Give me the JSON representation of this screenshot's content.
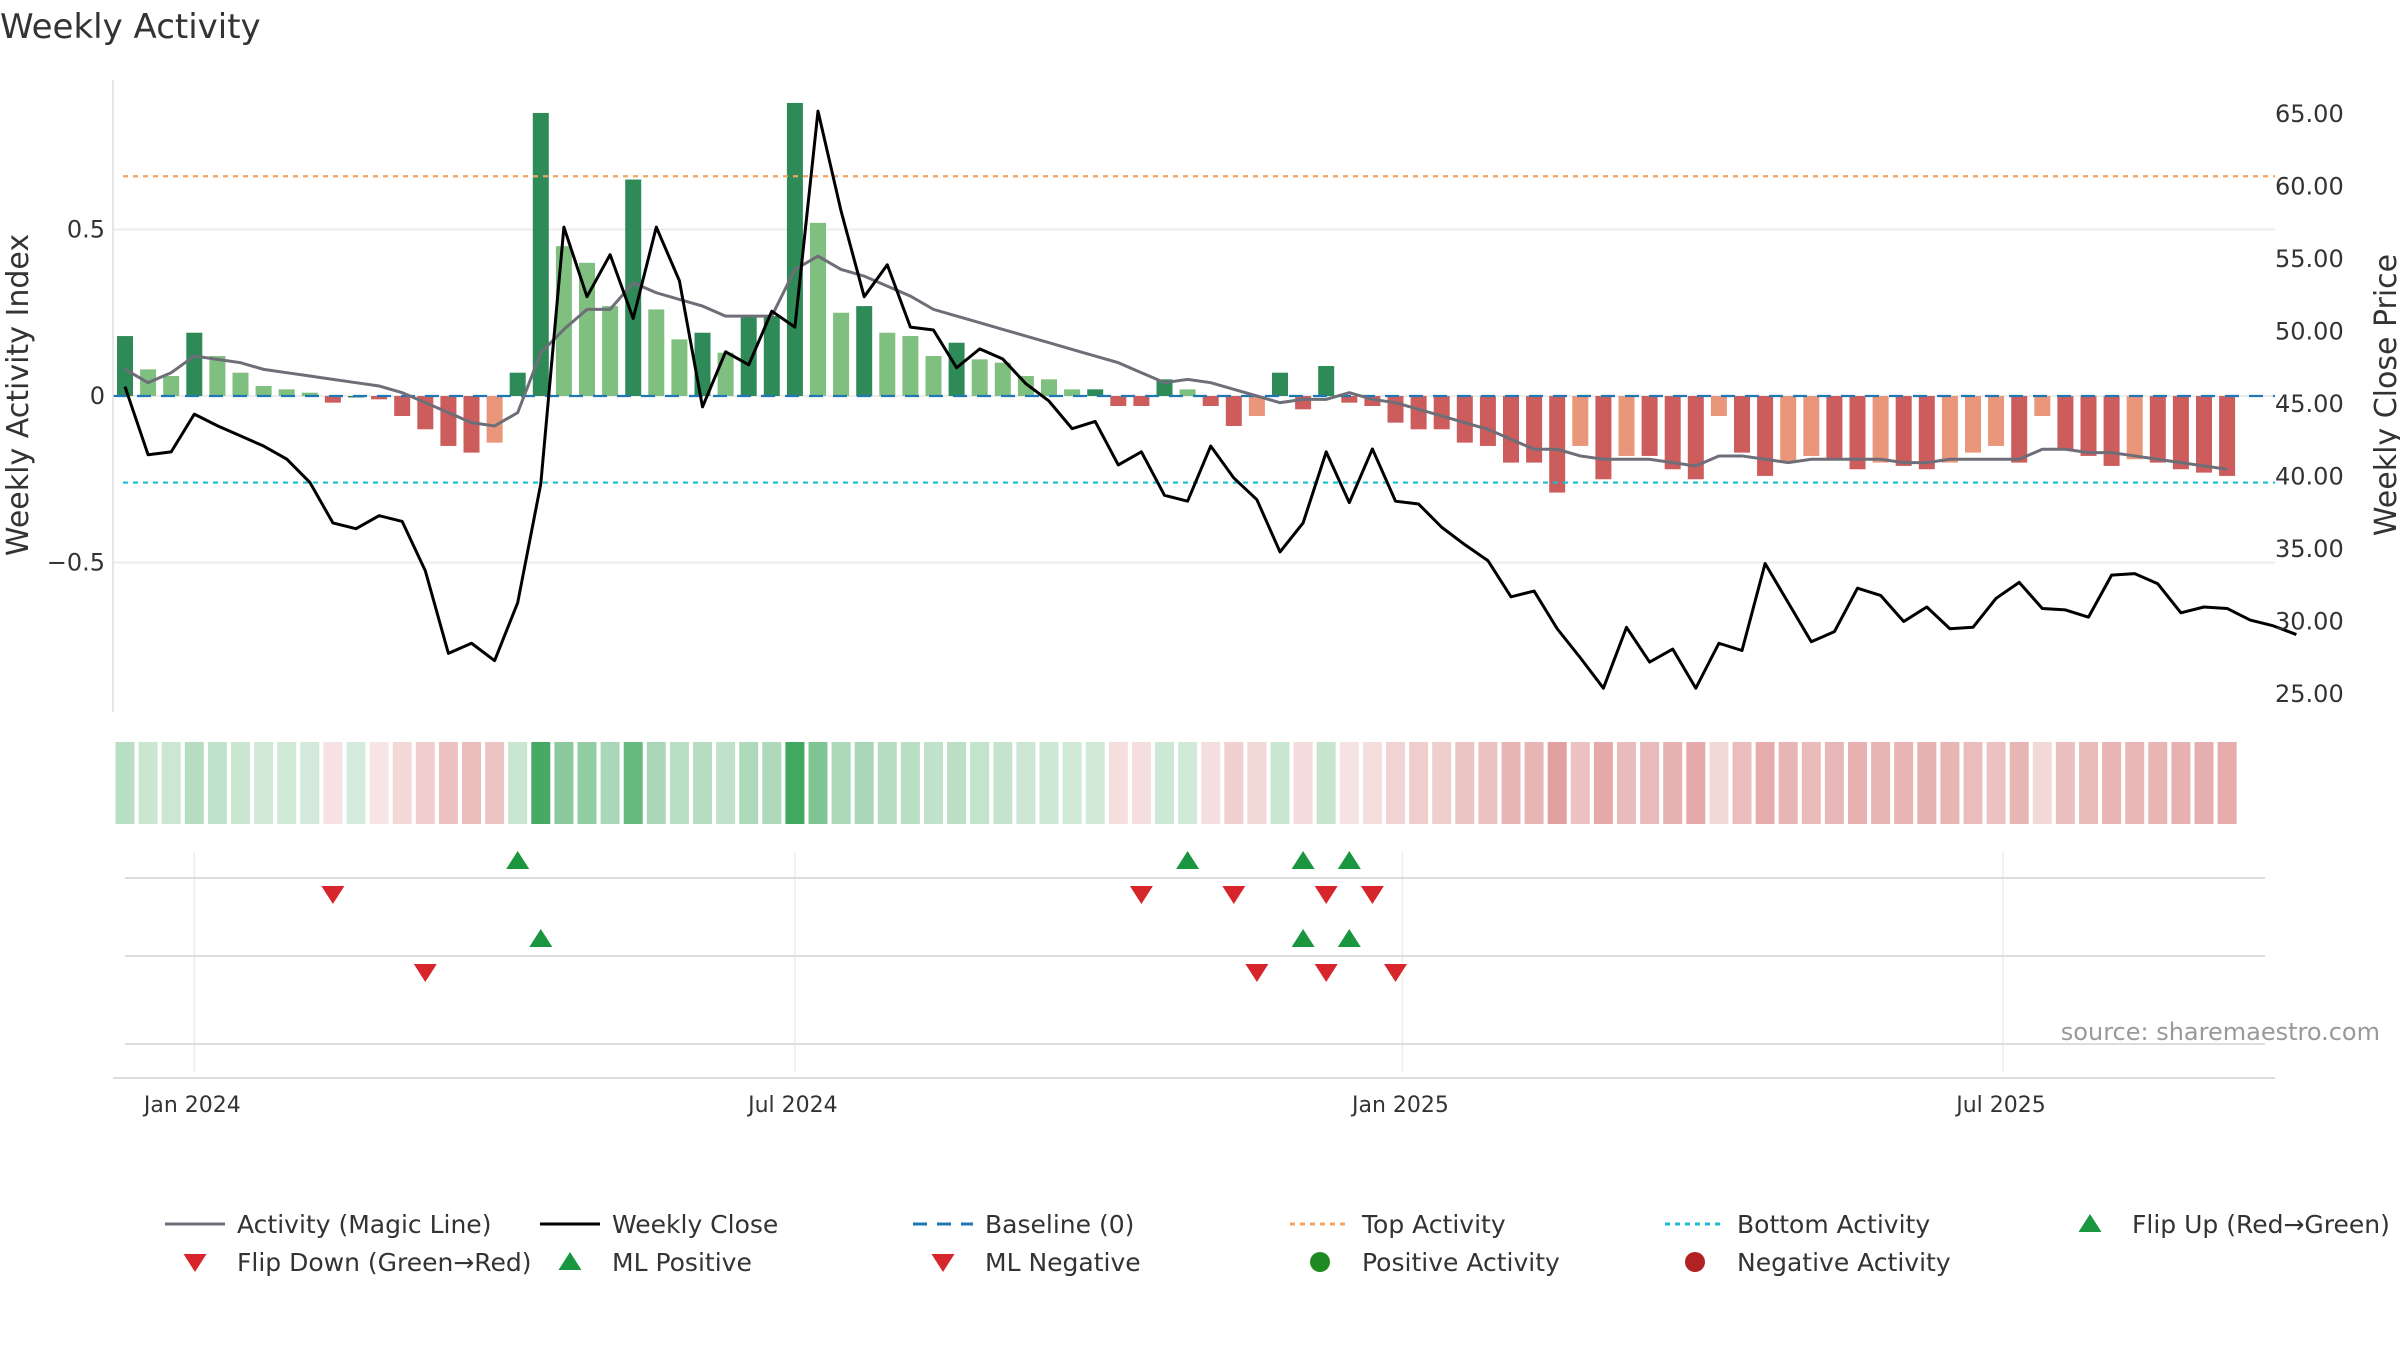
{
  "chart_data": {
    "type": "bar",
    "title": "Weekly Activity",
    "ylabel": "Weekly Activity Index",
    "ylabel_right": "Weekly Close Price",
    "source": "source: sharemaestro.com",
    "ylim": [
      -0.95,
      0.95
    ],
    "ylim_right": [
      23.0,
      67.0
    ],
    "y_ticks": [
      {
        "v": 0.5,
        "label": "0.5"
      },
      {
        "v": 0,
        "label": "0"
      },
      {
        "v": -0.5,
        "label": "−0.5"
      }
    ],
    "y_right_ticks": [
      {
        "v": 65,
        "label": "65.00"
      },
      {
        "v": 60,
        "label": "60.00"
      },
      {
        "v": 55,
        "label": "55.00"
      },
      {
        "v": 50,
        "label": "50.00"
      },
      {
        "v": 45,
        "label": "45.00"
      },
      {
        "v": 40,
        "label": "40.00"
      },
      {
        "v": 35,
        "label": "35.00"
      },
      {
        "v": 30,
        "label": "30.00"
      },
      {
        "v": 25,
        "label": "25.00"
      }
    ],
    "x_ticks": [
      {
        "week": 3,
        "label": "Jan 2024"
      },
      {
        "week": 29,
        "label": "Jul 2024"
      },
      {
        "week": 55.3,
        "label": "Jan 2025"
      },
      {
        "week": 81.3,
        "label": "Jul 2025"
      }
    ],
    "top_activity": 0.66,
    "bottom_activity": -0.26,
    "activity": [
      0.18,
      0.08,
      0.06,
      0.19,
      0.12,
      0.07,
      0.03,
      0.02,
      0.01,
      -0.02,
      0,
      -0.01,
      -0.06,
      -0.1,
      -0.15,
      -0.17,
      -0.14,
      0.07,
      0.85,
      0.45,
      0.4,
      0.27,
      0.65,
      0.26,
      0.17,
      0.19,
      0.13,
      0.24,
      0.24,
      0.88,
      0.52,
      0.25,
      0.27,
      0.19,
      0.18,
      0.12,
      0.16,
      0.11,
      0.1,
      0.06,
      0.05,
      0.02,
      0.02,
      -0.03,
      -0.03,
      0.05,
      0.02,
      -0.03,
      -0.09,
      -0.06,
      0.07,
      -0.04,
      0.09,
      -0.02,
      -0.03,
      -0.08,
      -0.1,
      -0.1,
      -0.14,
      -0.15,
      -0.2,
      -0.2,
      -0.29,
      -0.15,
      -0.25,
      -0.18,
      -0.18,
      -0.22,
      -0.25,
      -0.06,
      -0.17,
      -0.24,
      -0.2,
      -0.18,
      -0.19,
      -0.22,
      -0.2,
      -0.21,
      -0.22,
      -0.2,
      -0.17,
      -0.15,
      -0.2,
      -0.06,
      -0.16,
      -0.18,
      -0.21,
      -0.19,
      -0.2,
      -0.22,
      -0.23,
      -0.24
    ],
    "magic_line": [
      0.08,
      0.04,
      0.07,
      0.12,
      0.11,
      0.1,
      0.08,
      0.07,
      0.06,
      0.05,
      0.04,
      0.03,
      0.01,
      -0.02,
      -0.05,
      -0.08,
      -0.09,
      -0.05,
      0.13,
      0.2,
      0.26,
      0.26,
      0.34,
      0.31,
      0.29,
      0.27,
      0.24,
      0.24,
      0.24,
      0.38,
      0.42,
      0.38,
      0.36,
      0.33,
      0.3,
      0.26,
      0.24,
      0.22,
      0.2,
      0.18,
      0.16,
      0.14,
      0.12,
      0.1,
      0.07,
      0.04,
      0.05,
      0.04,
      0.02,
      0,
      -0.02,
      -0.01,
      -0.01,
      0.01,
      -0.01,
      -0.02,
      -0.04,
      -0.06,
      -0.08,
      -0.1,
      -0.13,
      -0.16,
      -0.16,
      -0.18,
      -0.19,
      -0.19,
      -0.19,
      -0.2,
      -0.21,
      -0.18,
      -0.18,
      -0.19,
      -0.2,
      -0.19,
      -0.19,
      -0.19,
      -0.19,
      -0.2,
      -0.2,
      -0.19,
      -0.19,
      -0.19,
      -0.19,
      -0.16,
      -0.16,
      -0.17,
      -0.17,
      -0.18,
      -0.19,
      -0.2,
      -0.21,
      -0.22
    ],
    "weekly_close": [
      46.2,
      41.5,
      41.7,
      44.3,
      43.5,
      42.8,
      42.1,
      41.2,
      39.6,
      36.8,
      36.4,
      37.3,
      36.9,
      33.5,
      27.8,
      28.5,
      27.3,
      31.3,
      39.5,
      57.2,
      52.4,
      55.3,
      50.9,
      57.2,
      53.5,
      44.8,
      48.6,
      47.7,
      51.4,
      50.3,
      65.2,
      58.3,
      52.4,
      54.6,
      50.3,
      50.1,
      47.5,
      48.8,
      48.1,
      46.4,
      45.2,
      43.3,
      43.8,
      40.8,
      41.7,
      38.7,
      38.3,
      42.1,
      39.9,
      38.4,
      34.8,
      36.8,
      41.7,
      38.2,
      41.9,
      38.3,
      38.1,
      36.5,
      35.3,
      34.2,
      31.7,
      32.1,
      29.5,
      27.5,
      25.4,
      29.6,
      27.2,
      28.1,
      25.4,
      28.5,
      28.0,
      34.0,
      31.3,
      28.6,
      29.3,
      32.3,
      31.8,
      30.0,
      31.0,
      29.5,
      29.6,
      31.6,
      32.7,
      30.9,
      30.8,
      30.3,
      33.2,
      33.3,
      32.6,
      30.6,
      31.0,
      30.9,
      30.1,
      29.7,
      29.1
    ],
    "flip_up_row1": [
      17,
      46,
      51,
      53
    ],
    "flip_down_row1": [
      9,
      44,
      48,
      52,
      54
    ],
    "ml_positive_row2": [
      18,
      51,
      53
    ],
    "ml_negative_row2": [
      13,
      49,
      52,
      55
    ],
    "legend": [
      "Activity (Magic Line)",
      "Weekly Close",
      "Baseline (0)",
      "Top Activity",
      "Bottom Activity",
      "Flip Up (Red→Green)",
      "Flip Down (Green→Red)",
      "ML Positive",
      "ML Negative",
      "Positive Activity",
      "Negative Activity"
    ],
    "colors": {
      "dark_green": "#2e8b57",
      "light_green": "#7fbf7f",
      "dark_red": "#cd5c5c",
      "light_red": "#e9967a",
      "magic_line": "#6e6e78",
      "close": "#000000",
      "baseline": "#1f77b4",
      "top": "#f4a460",
      "bottom": "#17becf",
      "marker_up": "#1a9641",
      "marker_down": "#d7262b",
      "pos_dot": "#1e8b22",
      "neg_dot": "#b22222"
    }
  }
}
